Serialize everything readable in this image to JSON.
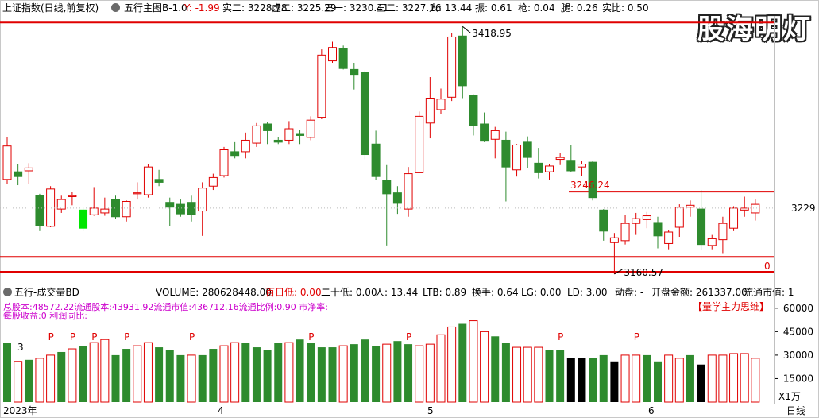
{
  "header": {
    "symbol": "上证指数(日线,前复权)",
    "indicator_icon": "gear-icon",
    "indicator": "五行主图B-1.0",
    "stats": [
      {
        "label": "Y: -1.99",
        "color": "#e00000"
      },
      {
        "label": "实二: 3228.78",
        "color": "#000000"
      },
      {
        "label": "虚二: 3225.29",
        "color": "#000000"
      },
      {
        "label": "三一: 3230.41",
        "color": "#000000"
      },
      {
        "label": "三二: 3227.16",
        "color": "#000000"
      },
      {
        "label": "人: 13.44",
        "color": "#000000"
      },
      {
        "label": "振: 0.61",
        "color": "#000000"
      },
      {
        "label": "枪: 0.04",
        "color": "#000000"
      },
      {
        "label": "腿: 0.26",
        "color": "#000000"
      },
      {
        "label": "实比: 0.50",
        "color": "#000000"
      }
    ]
  },
  "watermark": "股海明灯",
  "main_chart": {
    "high_label": "3418.95",
    "low_label": "3160.57",
    "level_label": "3246.24",
    "zero_label": "0",
    "right_tick": "3229"
  },
  "volume_panel": {
    "icon": "gear-icon",
    "title": "五行-成交量BD",
    "stats": [
      {
        "label": "VOLUME: 280628448.00",
        "color": "#000000"
      },
      {
        "label": "百日低: 0.00",
        "color": "#e00000"
      },
      {
        "label": "二十低: 0.00",
        "color": "#000000"
      },
      {
        "label": "人: 13.44",
        "color": "#000000"
      },
      {
        "label": "LTB: 0.89",
        "color": "#000000"
      },
      {
        "label": "换手: 0.64",
        "color": "#000000"
      },
      {
        "label": "LG: 0.00",
        "color": "#000000"
      },
      {
        "label": "LD: 3.00",
        "color": "#000000"
      },
      {
        "label": "动盘: -",
        "color": "#000000"
      },
      {
        "label": "开盘金额: 261337.00",
        "color": "#000000"
      },
      {
        "label": "流通市值: 1",
        "color": "#000000"
      }
    ],
    "overlay_line1": "总股本:48572.22流通股本:43931.92流通市值:436712.16流通比例:0.90   市净率:",
    "overlay_line2": "每股收益:0     利润同比:",
    "brand_tag": "【量学主力思维】",
    "marker_3": "3",
    "marker_p": "P",
    "y_ticks": [
      "60000",
      "45000",
      "30000",
      "15000"
    ],
    "unit": "X1万"
  },
  "date_axis": {
    "labels": [
      "2023年",
      "4",
      "5",
      "6"
    ],
    "period_button": "日线"
  },
  "colors": {
    "up": "#e00000",
    "down": "#2e8b2e",
    "bright": "#00e600",
    "accent_red": "#e00000",
    "magenta": "#cc00cc",
    "black": "#000000"
  },
  "chart_data": {
    "type": "candlestick",
    "series": [
      {
        "o": 3259,
        "h": 3303,
        "l": 3254,
        "c": 3294
      },
      {
        "o": 3267,
        "h": 3275,
        "l": 3253,
        "c": 3262
      },
      {
        "o": 3268,
        "h": 3276,
        "l": 3254,
        "c": 3271
      },
      {
        "o": 3242,
        "h": 3244,
        "l": 3205,
        "c": 3211
      },
      {
        "o": 3210,
        "h": 3252,
        "l": 3209,
        "c": 3249
      },
      {
        "o": 3228,
        "h": 3242,
        "l": 3224,
        "c": 3238
      },
      {
        "o": 3241,
        "h": 3246,
        "l": 3232,
        "c": 3242
      },
      {
        "o": 3227,
        "h": 3230,
        "l": 3205,
        "c": 3208
      },
      {
        "o": 3222,
        "h": 3251,
        "l": 3221,
        "c": 3229
      },
      {
        "o": 3224,
        "h": 3240,
        "l": 3221,
        "c": 3228
      },
      {
        "o": 3238,
        "h": 3242,
        "l": 3218,
        "c": 3220
      },
      {
        "o": 3220,
        "h": 3237,
        "l": 3215,
        "c": 3236
      },
      {
        "o": 3244,
        "h": 3256,
        "l": 3238,
        "c": 3245
      },
      {
        "o": 3243,
        "h": 3275,
        "l": 3240,
        "c": 3272
      },
      {
        "o": 3259,
        "h": 3269,
        "l": 3252,
        "c": 3256
      },
      {
        "o": 3235,
        "h": 3240,
        "l": 3210,
        "c": 3230
      },
      {
        "o": 3233,
        "h": 3238,
        "l": 3220,
        "c": 3223
      },
      {
        "o": 3235,
        "h": 3242,
        "l": 3215,
        "c": 3222
      },
      {
        "o": 3226,
        "h": 3256,
        "l": 3200,
        "c": 3250
      },
      {
        "o": 3252,
        "h": 3265,
        "l": 3248,
        "c": 3261
      },
      {
        "o": 3263,
        "h": 3293,
        "l": 3261,
        "c": 3290
      },
      {
        "o": 3288,
        "h": 3298,
        "l": 3281,
        "c": 3284
      },
      {
        "o": 3288,
        "h": 3308,
        "l": 3281,
        "c": 3300
      },
      {
        "o": 3297,
        "h": 3318,
        "l": 3293,
        "c": 3315
      },
      {
        "o": 3317,
        "h": 3319,
        "l": 3296,
        "c": 3310
      },
      {
        "o": 3300,
        "h": 3303,
        "l": 3296,
        "c": 3298
      },
      {
        "o": 3300,
        "h": 3320,
        "l": 3296,
        "c": 3312
      },
      {
        "o": 3307,
        "h": 3311,
        "l": 3296,
        "c": 3305
      },
      {
        "o": 3303,
        "h": 3325,
        "l": 3300,
        "c": 3321
      },
      {
        "o": 3324,
        "h": 3395,
        "l": 3322,
        "c": 3389
      },
      {
        "o": 3383,
        "h": 3403,
        "l": 3381,
        "c": 3397
      },
      {
        "o": 3396,
        "h": 3399,
        "l": 3374,
        "c": 3375
      },
      {
        "o": 3374,
        "h": 3381,
        "l": 3353,
        "c": 3368
      },
      {
        "o": 3371,
        "h": 3373,
        "l": 3280,
        "c": 3285
      },
      {
        "o": 3296,
        "h": 3310,
        "l": 3258,
        "c": 3262
      },
      {
        "o": 3258,
        "h": 3274,
        "l": 3190,
        "c": 3244
      },
      {
        "o": 3245,
        "h": 3252,
        "l": 3223,
        "c": 3234
      },
      {
        "o": 3228,
        "h": 3272,
        "l": 3220,
        "c": 3265
      },
      {
        "o": 3266,
        "h": 3330,
        "l": 3266,
        "c": 3325
      },
      {
        "o": 3318,
        "h": 3366,
        "l": 3302,
        "c": 3344
      },
      {
        "o": 3332,
        "h": 3354,
        "l": 3327,
        "c": 3343
      },
      {
        "o": 3345,
        "h": 3412,
        "l": 3341,
        "c": 3408
      },
      {
        "o": 3409,
        "h": 3419,
        "l": 3344,
        "c": 3357
      },
      {
        "o": 3347,
        "h": 3348,
        "l": 3305,
        "c": 3315
      },
      {
        "o": 3317,
        "h": 3329,
        "l": 3298,
        "c": 3299
      },
      {
        "o": 3301,
        "h": 3314,
        "l": 3281,
        "c": 3310
      },
      {
        "o": 3300,
        "h": 3309,
        "l": 3236,
        "c": 3272
      },
      {
        "o": 3269,
        "h": 3296,
        "l": 3262,
        "c": 3295
      },
      {
        "o": 3298,
        "h": 3304,
        "l": 3271,
        "c": 3282
      },
      {
        "o": 3276,
        "h": 3292,
        "l": 3260,
        "c": 3266
      },
      {
        "o": 3267,
        "h": 3275,
        "l": 3258,
        "c": 3273
      },
      {
        "o": 3280,
        "h": 3287,
        "l": 3274,
        "c": 3282
      },
      {
        "o": 3279,
        "h": 3295,
        "l": 3267,
        "c": 3268
      },
      {
        "o": 3272,
        "h": 3278,
        "l": 3263,
        "c": 3275
      },
      {
        "o": 3277,
        "h": 3278,
        "l": 3237,
        "c": 3240
      },
      {
        "o": 3227,
        "h": 3228,
        "l": 3195,
        "c": 3205
      },
      {
        "o": 3193,
        "h": 3203,
        "l": 3160,
        "c": 3198
      },
      {
        "o": 3195,
        "h": 3222,
        "l": 3191,
        "c": 3213
      },
      {
        "o": 3213,
        "h": 3224,
        "l": 3201,
        "c": 3218
      },
      {
        "o": 3217,
        "h": 3225,
        "l": 3208,
        "c": 3221
      },
      {
        "o": 3214,
        "h": 3220,
        "l": 3187,
        "c": 3200
      },
      {
        "o": 3192,
        "h": 3206,
        "l": 3186,
        "c": 3204
      },
      {
        "o": 3209,
        "h": 3233,
        "l": 3199,
        "c": 3230
      },
      {
        "o": 3230,
        "h": 3237,
        "l": 3220,
        "c": 3232
      },
      {
        "o": 3228,
        "h": 3248,
        "l": 3185,
        "c": 3191
      },
      {
        "o": 3190,
        "h": 3201,
        "l": 3186,
        "c": 3197
      },
      {
        "o": 3196,
        "h": 3220,
        "l": 3182,
        "c": 3213
      },
      {
        "o": 3208,
        "h": 3231,
        "l": 3205,
        "c": 3229
      },
      {
        "o": 3227,
        "h": 3241,
        "l": 3220,
        "c": 3229
      },
      {
        "o": 3224,
        "h": 3238,
        "l": 3216,
        "c": 3233
      }
    ],
    "volume": [
      38,
      26,
      27,
      28,
      30,
      32,
      34,
      36,
      38,
      40,
      30,
      34,
      36,
      38,
      35,
      33,
      30,
      30,
      30,
      34,
      36,
      38,
      38,
      35,
      33,
      38,
      38,
      40,
      38,
      35,
      35,
      36,
      37,
      40,
      36,
      37,
      39,
      37,
      36,
      37,
      43,
      48,
      50,
      52,
      45,
      42,
      38,
      35,
      35,
      35,
      33,
      33,
      28,
      28,
      28,
      30,
      26,
      30,
      30,
      30,
      26,
      30,
      28,
      30,
      24,
      30,
      30,
      31,
      31,
      28
    ],
    "vol_kinds": [
      "g",
      "r",
      "g",
      "r",
      "r",
      "g",
      "r",
      "g",
      "r",
      "r",
      "g",
      "g",
      "r",
      "r",
      "g",
      "g",
      "g",
      "r",
      "g",
      "g",
      "r",
      "r",
      "g",
      "g",
      "g",
      "g",
      "r",
      "g",
      "g",
      "g",
      "g",
      "r",
      "g",
      "g",
      "g",
      "r",
      "g",
      "g",
      "r",
      "r",
      "r",
      "r",
      "g",
      "r",
      "r",
      "g",
      "g",
      "r",
      "r",
      "r",
      "g",
      "g",
      "k",
      "k",
      "g",
      "g",
      "k",
      "r",
      "r",
      "g",
      "g",
      "r",
      "r",
      "g",
      "k",
      "r",
      "r",
      "r",
      "r",
      "r"
    ],
    "ylim": [
      3150,
      3430
    ],
    "vol_ylim": [
      0,
      66000
    ]
  }
}
